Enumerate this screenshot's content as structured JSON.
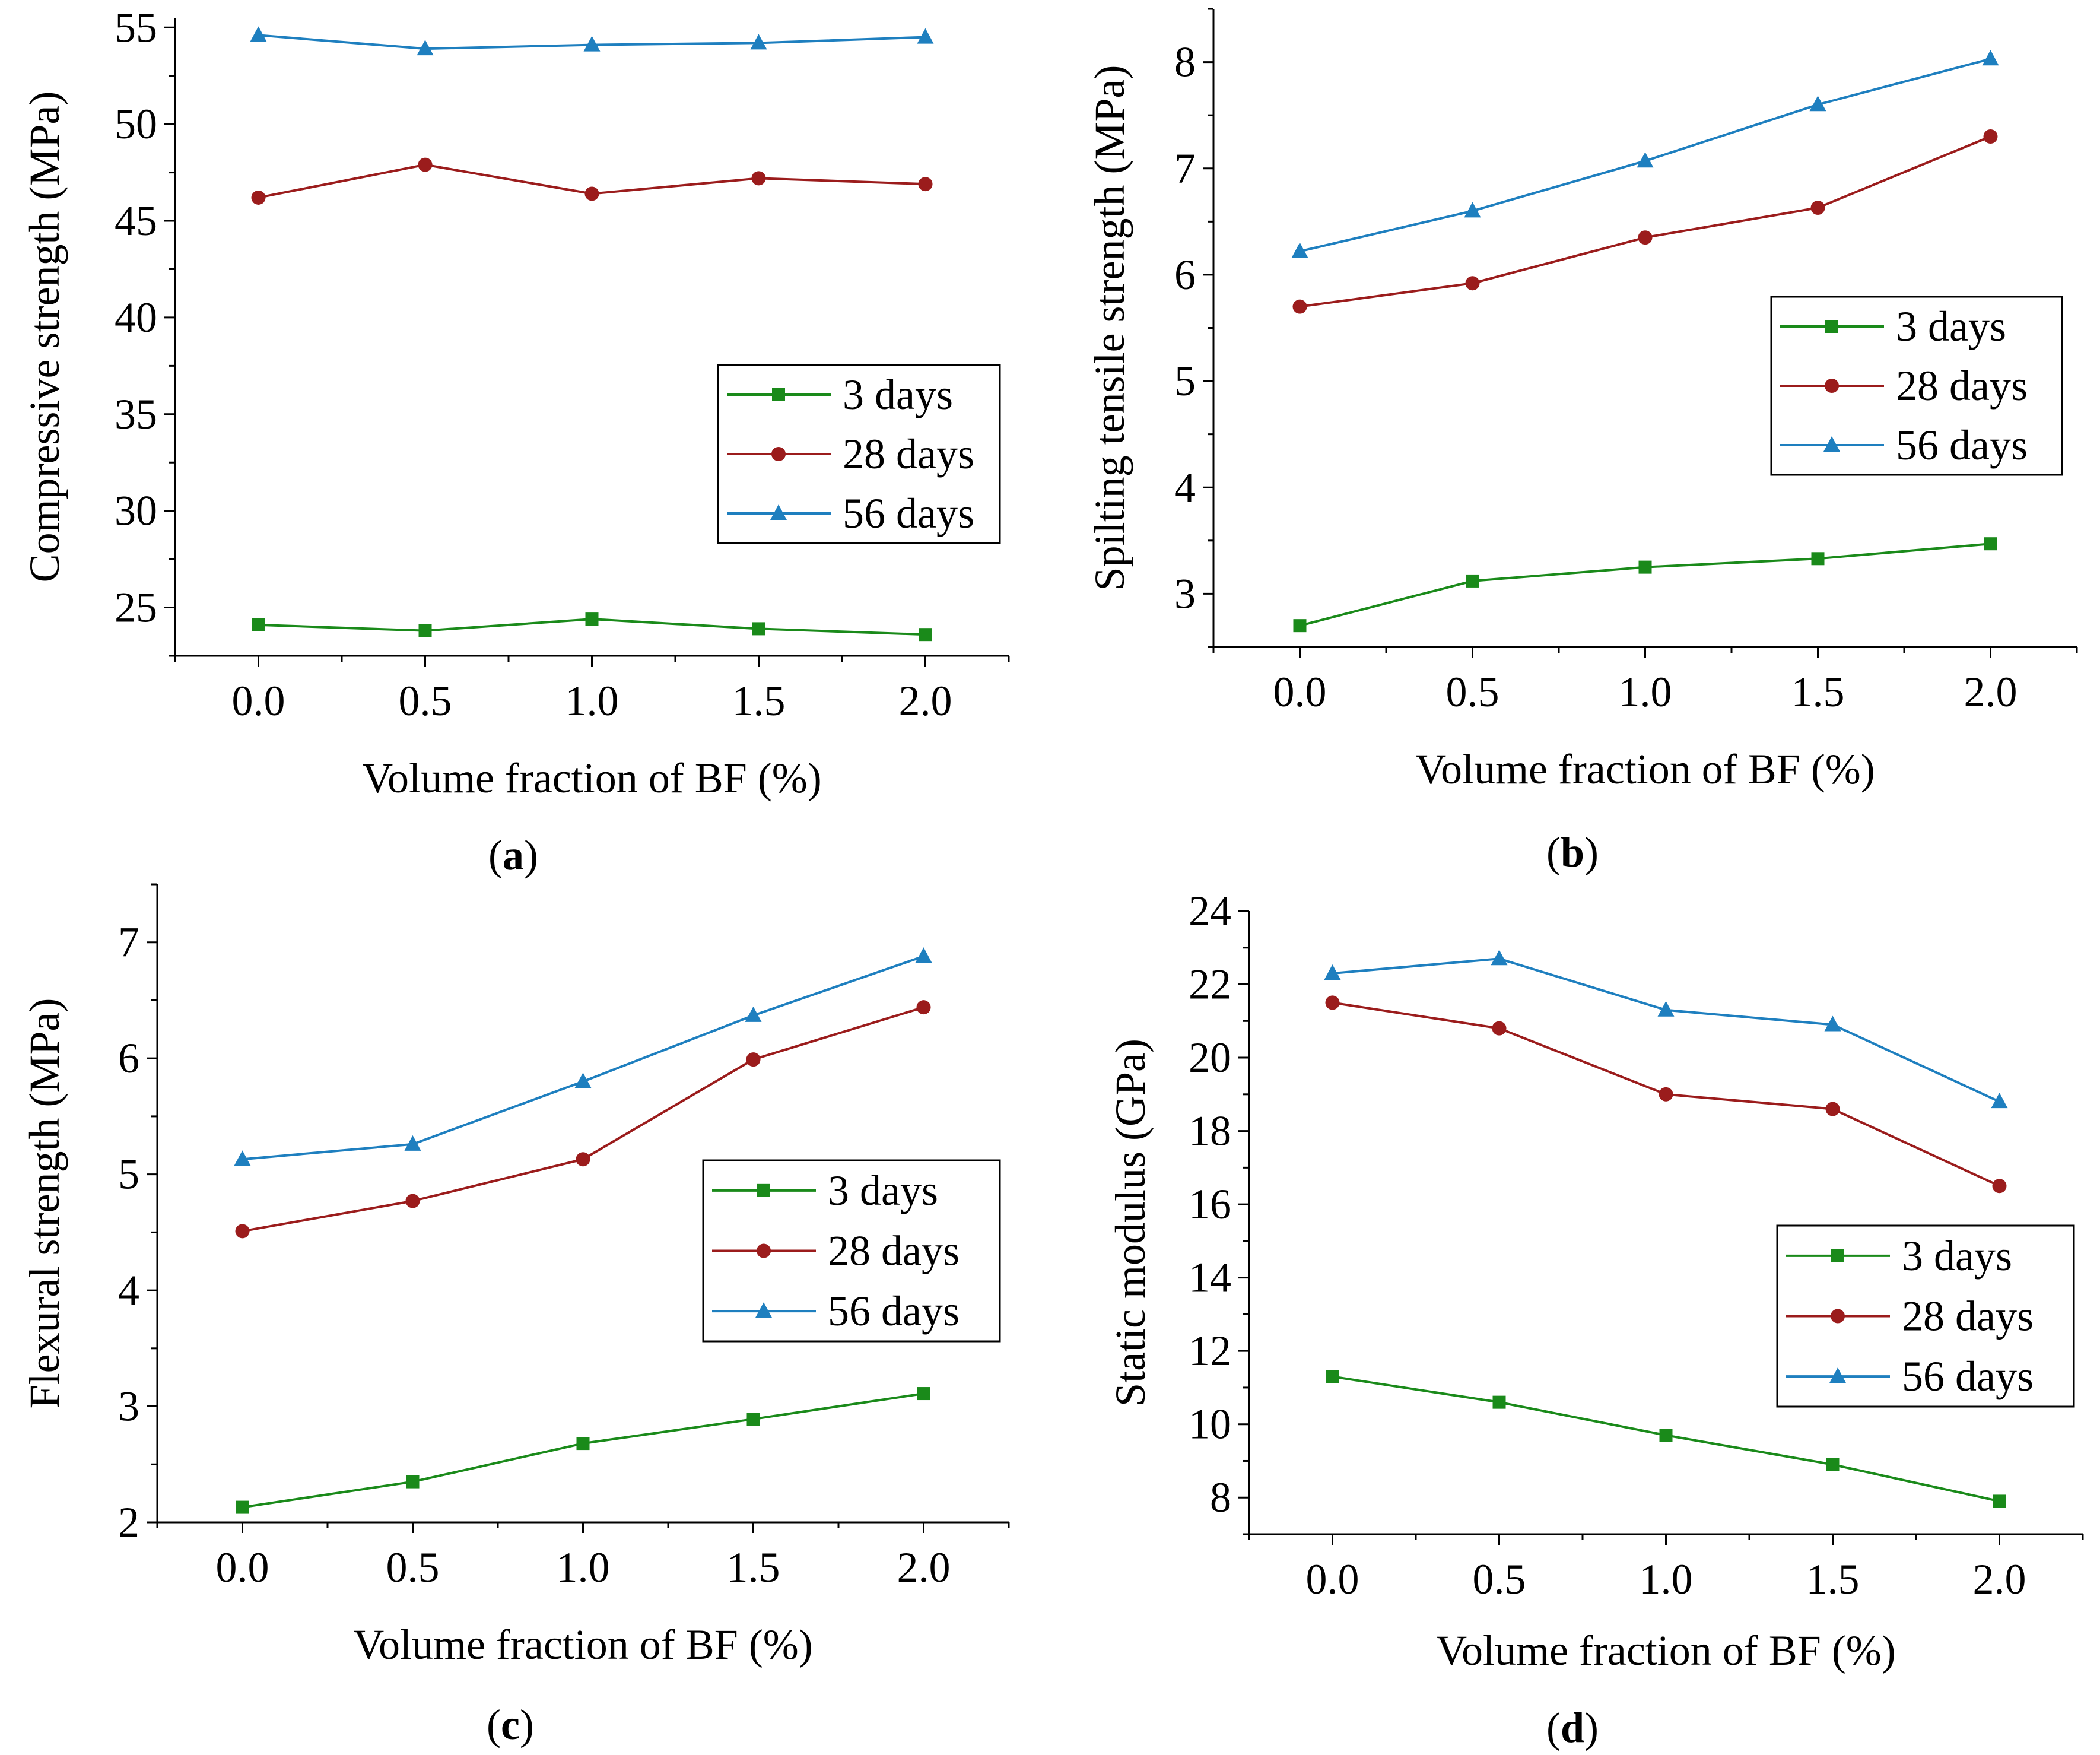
{
  "chart_data": [
    {
      "type": "line",
      "panel_label": "a",
      "xlabel": "Volume fraction of BF (%)",
      "ylabel": "Compressive strength (MPa)",
      "x": [
        0.0,
        0.5,
        1.0,
        1.5,
        2.0
      ],
      "xticks": [
        "0.0",
        "0.5",
        "1.0",
        "1.5",
        "2.0"
      ],
      "xlim": [
        -0.25,
        2.25
      ],
      "ylim": [
        22.5,
        55.5
      ],
      "yticks": [
        25,
        30,
        35,
        40,
        45,
        50,
        55
      ],
      "legend_position": "center-right",
      "series": [
        {
          "name": "3 days",
          "marker": "square",
          "color": "#1a8a1a",
          "values": [
            24.1,
            23.8,
            24.4,
            23.9,
            23.6
          ]
        },
        {
          "name": "28 days",
          "marker": "circle",
          "color": "#9b1c1c",
          "values": [
            46.2,
            47.9,
            46.4,
            47.2,
            46.9
          ]
        },
        {
          "name": "56 days",
          "marker": "triangle",
          "color": "#1e7fbf",
          "values": [
            54.6,
            53.9,
            54.1,
            54.2,
            54.5
          ]
        }
      ]
    },
    {
      "type": "line",
      "panel_label": "b",
      "xlabel": "Volume fraction of BF (%)",
      "ylabel": "Spilting tensile strength (MPa)",
      "x": [
        0.0,
        0.5,
        1.0,
        1.5,
        2.0
      ],
      "xticks": [
        "0.0",
        "0.5",
        "1.0",
        "1.5",
        "2.0"
      ],
      "xlim": [
        -0.25,
        2.25
      ],
      "ylim": [
        2.5,
        8.5
      ],
      "yticks": [
        3,
        4,
        5,
        6,
        7,
        8
      ],
      "legend_position": "center-right",
      "series": [
        {
          "name": "3 days",
          "marker": "square",
          "color": "#1a8a1a",
          "values": [
            2.7,
            3.12,
            3.25,
            3.33,
            3.47
          ]
        },
        {
          "name": "28 days",
          "marker": "circle",
          "color": "#9b1c1c",
          "values": [
            5.7,
            5.92,
            6.35,
            6.63,
            7.3
          ]
        },
        {
          "name": "56 days",
          "marker": "triangle",
          "color": "#1e7fbf",
          "values": [
            6.22,
            6.6,
            7.07,
            7.6,
            8.03
          ]
        }
      ]
    },
    {
      "type": "line",
      "panel_label": "c",
      "xlabel": "Volume fraction of BF (%)",
      "ylabel": "Flexural strength (MPa)",
      "x": [
        0.0,
        0.5,
        1.0,
        1.5,
        2.0
      ],
      "xticks": [
        "0.0",
        "0.5",
        "1.0",
        "1.5",
        "2.0"
      ],
      "xlim": [
        -0.25,
        2.25
      ],
      "ylim": [
        2.0,
        7.5
      ],
      "yticks": [
        2,
        3,
        4,
        5,
        6,
        7
      ],
      "legend_position": "center-right",
      "series": [
        {
          "name": "3 days",
          "marker": "square",
          "color": "#1a8a1a",
          "values": [
            2.13,
            2.35,
            2.68,
            2.89,
            3.11
          ]
        },
        {
          "name": "28 days",
          "marker": "circle",
          "color": "#9b1c1c",
          "values": [
            4.51,
            4.77,
            5.13,
            5.99,
            6.44
          ]
        },
        {
          "name": "56 days",
          "marker": "triangle",
          "color": "#1e7fbf",
          "values": [
            5.13,
            5.26,
            5.8,
            6.37,
            6.88
          ]
        }
      ]
    },
    {
      "type": "line",
      "panel_label": "d",
      "xlabel": "Volume fraction of BF (%)",
      "ylabel": "Static modulus (GPa)",
      "x": [
        0.0,
        0.5,
        1.0,
        1.5,
        2.0
      ],
      "xticks": [
        "0.0",
        "0.5",
        "1.0",
        "1.5",
        "2.0"
      ],
      "xlim": [
        -0.25,
        2.25
      ],
      "ylim": [
        7.0,
        24.0
      ],
      "yticks": [
        8,
        10,
        12,
        14,
        16,
        18,
        20,
        22,
        24
      ],
      "legend_position": "lower-right",
      "series": [
        {
          "name": "3 days",
          "marker": "square",
          "color": "#1a8a1a",
          "values": [
            11.3,
            10.6,
            9.7,
            8.9,
            7.9
          ]
        },
        {
          "name": "28 days",
          "marker": "circle",
          "color": "#9b1c1c",
          "values": [
            21.5,
            20.8,
            19.0,
            18.6,
            16.5
          ]
        },
        {
          "name": "56 days",
          "marker": "triangle",
          "color": "#1e7fbf",
          "values": [
            22.3,
            22.7,
            21.3,
            20.9,
            18.8
          ]
        }
      ]
    }
  ]
}
